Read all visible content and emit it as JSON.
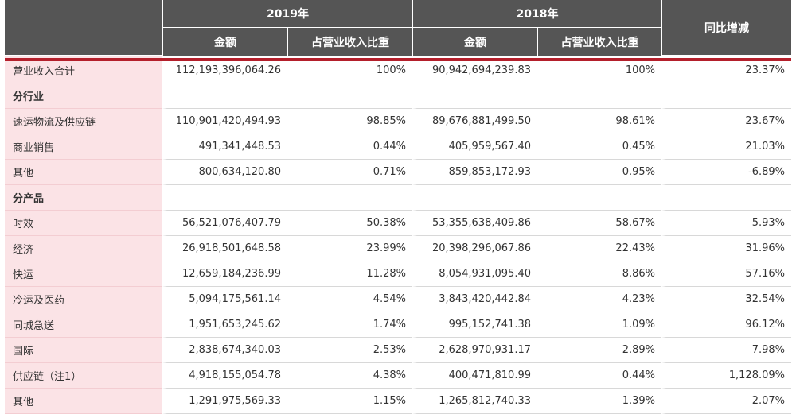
{
  "header": {
    "year_2019": "2019年",
    "year_2018": "2018年",
    "amount": "金额",
    "ratio": "占营业收入比重",
    "yoy": "同比增减"
  },
  "rows": [
    {
      "label": "营业收入合计",
      "a2019": "112,193,396,064.26",
      "r2019": "100%",
      "a2018": "90,942,694,239.83",
      "r2018": "100%",
      "yoy": "23.37%"
    },
    {
      "label": "分行业",
      "section": true
    },
    {
      "label": "速运物流及供应链",
      "a2019": "110,901,420,494.93",
      "r2019": "98.85%",
      "a2018": "89,676,881,499.50",
      "r2018": "98.61%",
      "yoy": "23.67%"
    },
    {
      "label": "商业销售",
      "a2019": "491,341,448.53",
      "r2019": "0.44%",
      "a2018": "405,959,567.40",
      "r2018": "0.45%",
      "yoy": "21.03%"
    },
    {
      "label": "其他",
      "a2019": "800,634,120.80",
      "r2019": "0.71%",
      "a2018": "859,853,172.93",
      "r2018": "0.95%",
      "yoy": "-6.89%"
    },
    {
      "label": "分产品",
      "section": true
    },
    {
      "label": "时效",
      "a2019": "56,521,076,407.79",
      "r2019": "50.38%",
      "a2018": "53,355,638,409.86",
      "r2018": "58.67%",
      "yoy": "5.93%"
    },
    {
      "label": "经济",
      "a2019": "26,918,501,648.58",
      "r2019": "23.99%",
      "a2018": "20,398,296,067.86",
      "r2018": "22.43%",
      "yoy": "31.96%"
    },
    {
      "label": "快运",
      "a2019": "12,659,184,236.99",
      "r2019": "11.28%",
      "a2018": "8,054,931,095.40",
      "r2018": "8.86%",
      "yoy": "57.16%"
    },
    {
      "label": "冷运及医药",
      "a2019": "5,094,175,561.14",
      "r2019": "4.54%",
      "a2018": "3,843,420,442.84",
      "r2018": "4.23%",
      "yoy": "32.54%"
    },
    {
      "label": "同城急送",
      "a2019": "1,951,653,245.62",
      "r2019": "1.74%",
      "a2018": "995,152,741.38",
      "r2018": "1.09%",
      "yoy": "96.12%"
    },
    {
      "label": "国际",
      "a2019": "2,838,674,340.03",
      "r2019": "2.53%",
      "a2018": "2,628,970,931.17",
      "r2018": "2.89%",
      "yoy": "7.98%"
    },
    {
      "label": "供应链（注1）",
      "a2019": "4,918,155,054.78",
      "r2019": "4.38%",
      "a2018": "400,471,810.99",
      "r2018": "0.44%",
      "yoy": "1,128.09%"
    },
    {
      "label": "其他",
      "a2019": "1,291,975,569.33",
      "r2019": "1.15%",
      "a2018": "1,265,812,740.33",
      "r2018": "1.39%",
      "yoy": "2.07%"
    }
  ]
}
